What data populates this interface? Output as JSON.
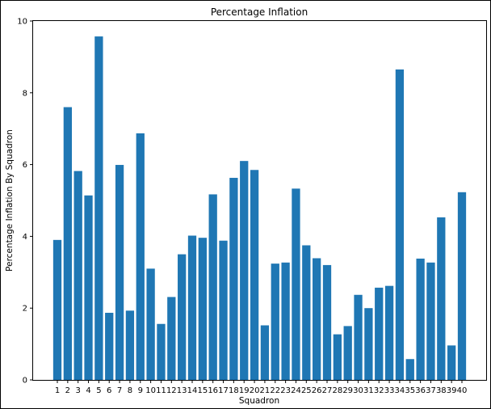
{
  "chart_data": {
    "type": "bar",
    "title": "Percentage Inflation",
    "xlabel": "Squadron",
    "ylabel": "Percentage Inflation By Squadron",
    "categories": [
      "1",
      "2",
      "3",
      "4",
      "5",
      "6",
      "7",
      "8",
      "9",
      "10",
      "11",
      "12",
      "13",
      "14",
      "15",
      "16",
      "17",
      "18",
      "19",
      "20",
      "21",
      "22",
      "23",
      "24",
      "25",
      "26",
      "27",
      "28",
      "29",
      "30",
      "31",
      "32",
      "33",
      "34",
      "35",
      "36",
      "37",
      "38",
      "39",
      "40"
    ],
    "values": [
      3.9,
      7.6,
      5.82,
      5.14,
      9.57,
      1.87,
      5.99,
      1.93,
      6.87,
      3.1,
      1.56,
      2.31,
      3.5,
      4.02,
      3.96,
      5.17,
      3.88,
      5.63,
      6.1,
      5.85,
      1.52,
      3.24,
      3.27,
      5.33,
      3.75,
      3.39,
      3.2,
      1.27,
      1.5,
      2.37,
      2.0,
      2.57,
      2.62,
      8.65,
      0.58,
      3.38,
      3.27,
      4.53,
      0.96,
      5.23
    ],
    "ylim": [
      0,
      10
    ],
    "yticks": [
      "0",
      "2",
      "4",
      "6",
      "8",
      "10"
    ],
    "grid": false,
    "bar_color": "#1f77b4"
  }
}
